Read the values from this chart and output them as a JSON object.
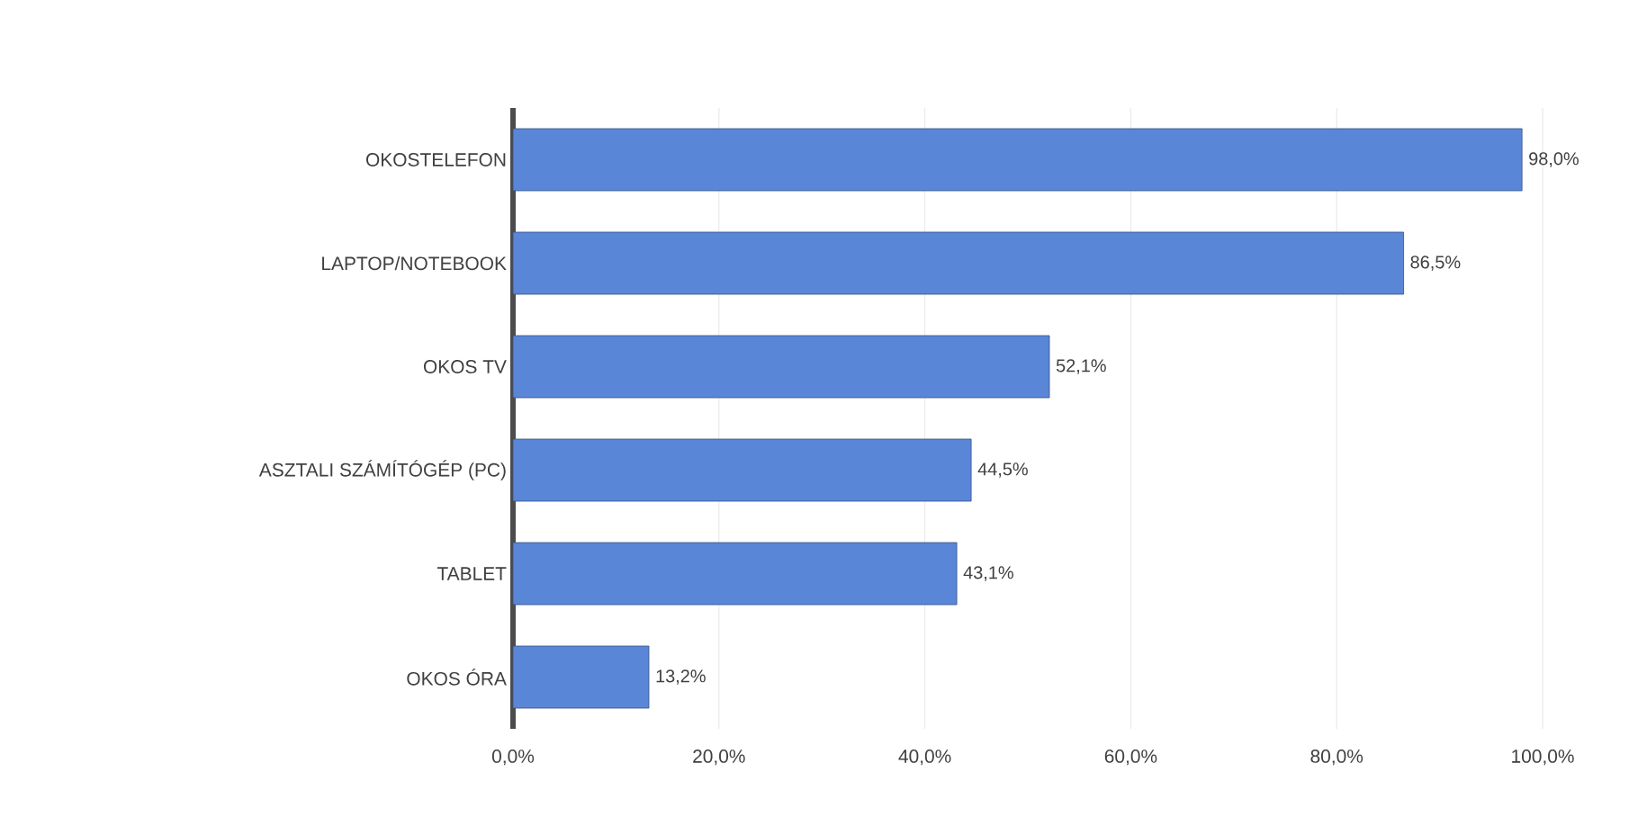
{
  "chart_data": {
    "type": "bar",
    "orientation": "horizontal",
    "categories": [
      "OKOSTELEFON",
      "LAPTOP/NOTEBOOK",
      "OKOS TV",
      "ASZTALI SZÁMÍTÓGÉP (PC)",
      "TABLET",
      "OKOS ÓRA"
    ],
    "values": [
      98.0,
      86.5,
      52.1,
      44.5,
      43.1,
      13.2
    ],
    "value_labels": [
      "98,0%",
      "86,5%",
      "52,1%",
      "44,5%",
      "43,1%",
      "13,2%"
    ],
    "color": "#5a86d8",
    "xlim": [
      0,
      100
    ],
    "xticks": [
      {
        "value": 0,
        "label": "0,0%"
      },
      {
        "value": 20,
        "label": "20,0%"
      },
      {
        "value": 40,
        "label": "40,0%"
      },
      {
        "value": 60,
        "label": "60,0%"
      },
      {
        "value": 80,
        "label": "80,0%"
      },
      {
        "value": 100,
        "label": "100,0%"
      }
    ],
    "grid": "x"
  }
}
